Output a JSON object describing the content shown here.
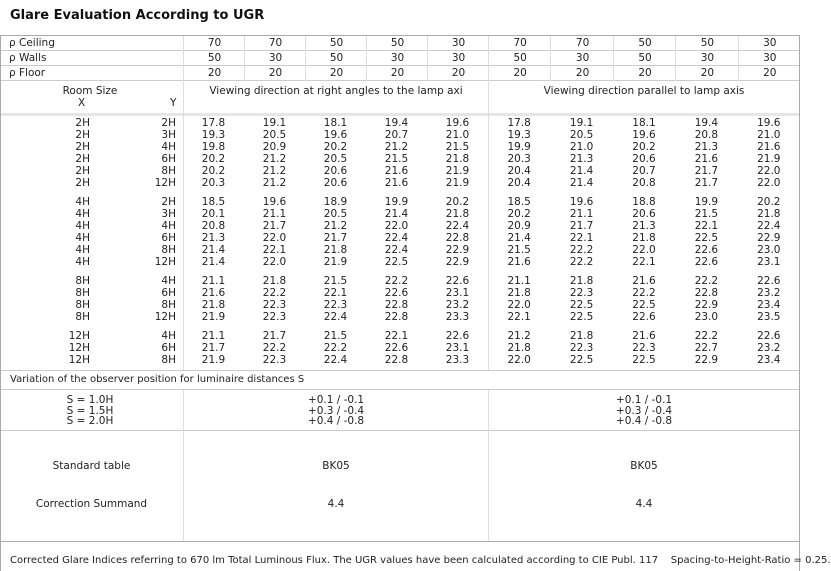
{
  "title": "Glare Evaluation According to UGR",
  "reflectances": [
    {
      "label": "ρ  Ceiling",
      "values": [
        "70",
        "70",
        "50",
        "50",
        "30",
        "70",
        "70",
        "50",
        "50",
        "30"
      ]
    },
    {
      "label": "ρ  Walls",
      "values": [
        "50",
        "30",
        "50",
        "30",
        "30",
        "50",
        "30",
        "50",
        "30",
        "30"
      ]
    },
    {
      "label": "ρ  Floor",
      "values": [
        "20",
        "20",
        "20",
        "20",
        "20",
        "20",
        "20",
        "20",
        "20",
        "20"
      ]
    }
  ],
  "header": {
    "room_size": "Room Size",
    "x": "X",
    "y": "Y",
    "right_angles": "Viewing direction at right angles to the lamp axi",
    "parallel": "Viewing direction parallel to lamp axis"
  },
  "groups": [
    {
      "rows": [
        {
          "x": "2H",
          "y": "2H",
          "v": [
            "17.8",
            "19.1",
            "18.1",
            "19.4",
            "19.6",
            "17.8",
            "19.1",
            "18.1",
            "19.4",
            "19.6"
          ]
        },
        {
          "x": "2H",
          "y": "3H",
          "v": [
            "19.3",
            "20.5",
            "19.6",
            "20.7",
            "21.0",
            "19.3",
            "20.5",
            "19.6",
            "20.8",
            "21.0"
          ]
        },
        {
          "x": "2H",
          "y": "4H",
          "v": [
            "19.8",
            "20.9",
            "20.2",
            "21.2",
            "21.5",
            "19.9",
            "21.0",
            "20.2",
            "21.3",
            "21.6"
          ]
        },
        {
          "x": "2H",
          "y": "6H",
          "v": [
            "20.2",
            "21.2",
            "20.5",
            "21.5",
            "21.8",
            "20.3",
            "21.3",
            "20.6",
            "21.6",
            "21.9"
          ]
        },
        {
          "x": "2H",
          "y": "8H",
          "v": [
            "20.2",
            "21.2",
            "20.6",
            "21.6",
            "21.9",
            "20.4",
            "21.4",
            "20.7",
            "21.7",
            "22.0"
          ]
        },
        {
          "x": "2H",
          "y": "12H",
          "v": [
            "20.3",
            "21.2",
            "20.6",
            "21.6",
            "21.9",
            "20.4",
            "21.4",
            "20.8",
            "21.7",
            "22.0"
          ]
        }
      ]
    },
    {
      "rows": [
        {
          "x": "4H",
          "y": "2H",
          "v": [
            "18.5",
            "19.6",
            "18.9",
            "19.9",
            "20.2",
            "18.5",
            "19.6",
            "18.8",
            "19.9",
            "20.2"
          ]
        },
        {
          "x": "4H",
          "y": "3H",
          "v": [
            "20.1",
            "21.1",
            "20.5",
            "21.4",
            "21.8",
            "20.2",
            "21.1",
            "20.6",
            "21.5",
            "21.8"
          ]
        },
        {
          "x": "4H",
          "y": "4H",
          "v": [
            "20.8",
            "21.7",
            "21.2",
            "22.0",
            "22.4",
            "20.9",
            "21.7",
            "21.3",
            "22.1",
            "22.4"
          ]
        },
        {
          "x": "4H",
          "y": "6H",
          "v": [
            "21.3",
            "22.0",
            "21.7",
            "22.4",
            "22.8",
            "21.4",
            "22.1",
            "21.8",
            "22.5",
            "22.9"
          ]
        },
        {
          "x": "4H",
          "y": "8H",
          "v": [
            "21.4",
            "22.1",
            "21.8",
            "22.4",
            "22.9",
            "21.5",
            "22.2",
            "22.0",
            "22.6",
            "23.0"
          ]
        },
        {
          "x": "4H",
          "y": "12H",
          "v": [
            "21.4",
            "22.0",
            "21.9",
            "22.5",
            "22.9",
            "21.6",
            "22.2",
            "22.1",
            "22.6",
            "23.1"
          ]
        }
      ]
    },
    {
      "rows": [
        {
          "x": "8H",
          "y": "4H",
          "v": [
            "21.1",
            "21.8",
            "21.5",
            "22.2",
            "22.6",
            "21.1",
            "21.8",
            "21.6",
            "22.2",
            "22.6"
          ]
        },
        {
          "x": "8H",
          "y": "6H",
          "v": [
            "21.6",
            "22.2",
            "22.1",
            "22.6",
            "23.1",
            "21.8",
            "22.3",
            "22.2",
            "22.8",
            "23.2"
          ]
        },
        {
          "x": "8H",
          "y": "8H",
          "v": [
            "21.8",
            "22.3",
            "22.3",
            "22.8",
            "23.2",
            "22.0",
            "22.5",
            "22.5",
            "22.9",
            "23.4"
          ]
        },
        {
          "x": "8H",
          "y": "12H",
          "v": [
            "21.9",
            "22.3",
            "22.4",
            "22.8",
            "23.3",
            "22.1",
            "22.5",
            "22.6",
            "23.0",
            "23.5"
          ]
        }
      ]
    },
    {
      "rows": [
        {
          "x": "12H",
          "y": "4H",
          "v": [
            "21.1",
            "21.7",
            "21.5",
            "22.1",
            "22.6",
            "21.2",
            "21.8",
            "21.6",
            "22.2",
            "22.6"
          ]
        },
        {
          "x": "12H",
          "y": "6H",
          "v": [
            "21.7",
            "22.2",
            "22.2",
            "22.6",
            "23.1",
            "21.8",
            "22.3",
            "22.3",
            "22.7",
            "23.2"
          ]
        },
        {
          "x": "12H",
          "y": "8H",
          "v": [
            "21.9",
            "22.3",
            "22.4",
            "22.8",
            "23.3",
            "22.0",
            "22.5",
            "22.5",
            "22.9",
            "23.4"
          ]
        }
      ]
    }
  ],
  "variation": {
    "title": "Variation of the observer position for luminaire distances S",
    "labels": [
      "S = 1.0H",
      "S = 1.5H",
      "S = 2.0H"
    ],
    "right_angles": [
      "+0.1 / -0.1",
      "+0.3 / -0.4",
      "+0.4 / -0.8"
    ],
    "parallel": [
      "+0.1 / -0.1",
      "+0.3 / -0.4",
      "+0.4 / -0.8"
    ]
  },
  "standard_table": {
    "label": "Standard table",
    "right_angles": "BK05",
    "parallel": "BK05"
  },
  "correction": {
    "label": "Correction Summand",
    "right_angles": "4.4",
    "parallel": "4.4"
  },
  "footer": "Corrected Glare Indices referring to 670 lm Total Luminous Flux. The UGR values have been calculated according to CIE Publ. 117    Spacing-to-Height-Ratio = 0.25."
}
